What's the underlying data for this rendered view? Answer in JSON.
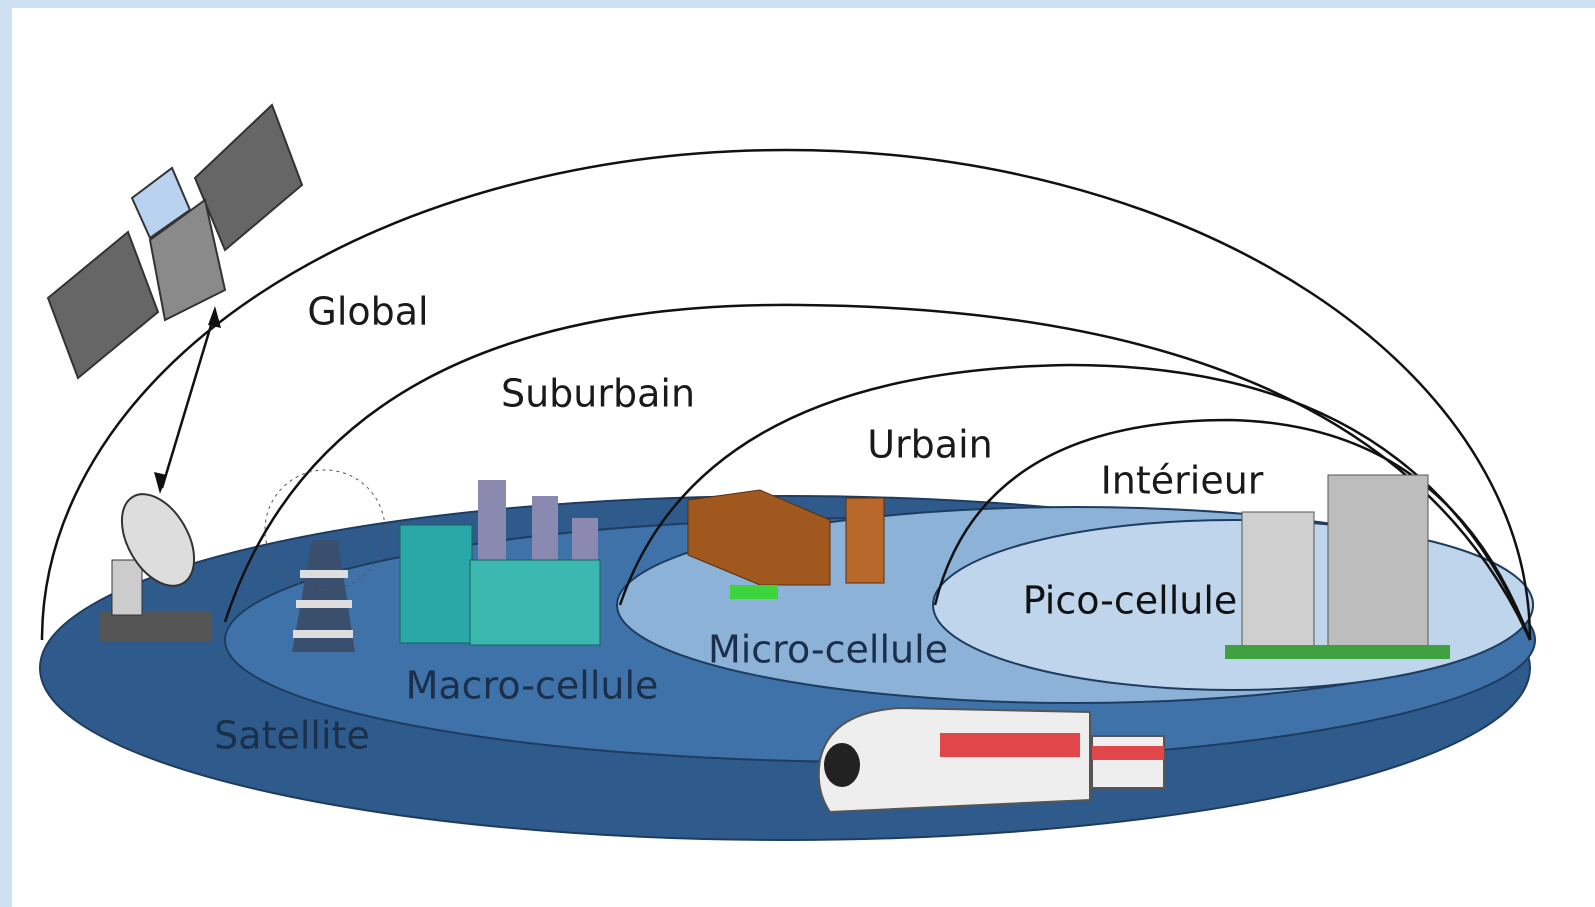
{
  "zones": [
    {
      "dome": "Global",
      "floor": "Satellite"
    },
    {
      "dome": "Suburbain",
      "floor": "Macro-cellule"
    },
    {
      "dome": "Urbain",
      "floor": "Micro-cellule"
    },
    {
      "dome": "Intérieur",
      "floor": "Pico-cellule"
    }
  ]
}
